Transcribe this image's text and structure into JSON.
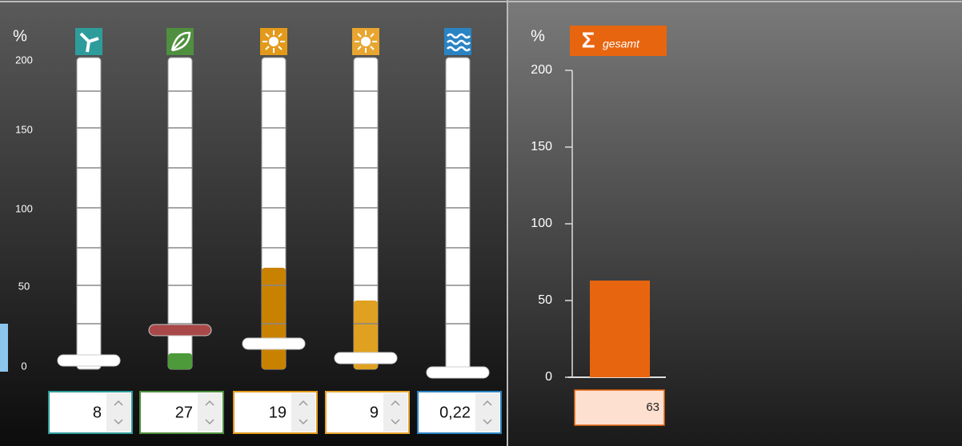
{
  "left_panel": {
    "unit": "%",
    "scale": [
      "200",
      "150",
      "100",
      "50",
      "0"
    ],
    "sliders": [
      {
        "input": "8"
      },
      {
        "input": "27"
      },
      {
        "input": "19"
      },
      {
        "input": "9"
      },
      {
        "input": "0,22"
      }
    ]
  },
  "total_badge": {
    "symbol": "Σ"
  },
  "chart_data": {
    "type": "bar",
    "ylabel": "%",
    "categories": [
      "gesamt"
    ],
    "values": [
      63
    ],
    "ylim": [
      0,
      200
    ],
    "yticks": [
      0,
      50,
      100,
      150,
      200
    ],
    "color": "#e8650f"
  }
}
